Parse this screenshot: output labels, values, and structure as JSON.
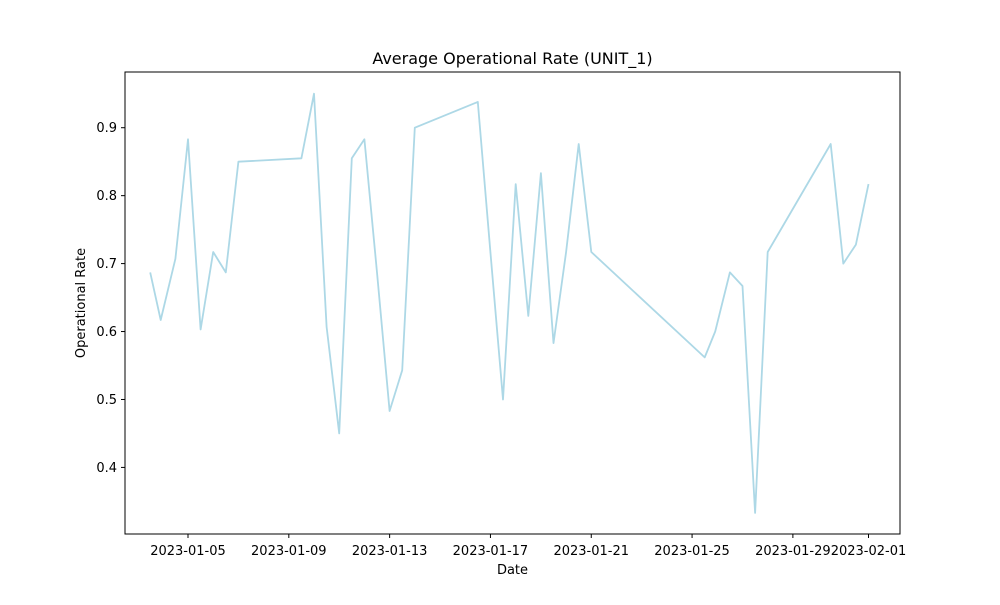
{
  "chart_data": {
    "type": "line",
    "title": "Average Operational Rate (UNIT_1)",
    "xlabel": "Date",
    "ylabel": "Operational Rate",
    "x_ticks": [
      "2023-01-05",
      "2023-01-09",
      "2023-01-13",
      "2023-01-17",
      "2023-01-21",
      "2023-01-25",
      "2023-01-29",
      "2023-02-01"
    ],
    "y_ticks": [
      "0.4",
      "0.5",
      "0.6",
      "0.7",
      "0.8",
      "0.9"
    ],
    "xlim": [
      "2023-01-02 12:00",
      "2023-02-02 06:00"
    ],
    "ylim": [
      0.302,
      0.982
    ],
    "grid": false,
    "legend": "none",
    "series": [
      {
        "color": "#add8e6",
        "x": [
          "2023-01-03 12:00",
          "2023-01-03 22:00",
          "2023-01-04 12:00",
          "2023-01-05 00:00",
          "2023-01-05 12:00",
          "2023-01-06 00:00",
          "2023-01-06 12:00",
          "2023-01-07 00:00",
          "2023-01-09 12:00",
          "2023-01-10 00:00",
          "2023-01-10 12:00",
          "2023-01-11 00:00",
          "2023-01-11 12:00",
          "2023-01-12 00:00",
          "2023-01-12 12:00",
          "2023-01-13 00:00",
          "2023-01-13 12:00",
          "2023-01-14 00:00",
          "2023-01-16 12:00",
          "2023-01-17 00:00",
          "2023-01-17 12:00",
          "2023-01-18 00:00",
          "2023-01-18 12:00",
          "2023-01-19 00:00",
          "2023-01-19 12:00",
          "2023-01-20 00:00",
          "2023-01-20 12:00",
          "2023-01-21 00:00",
          "2023-01-25 12:00",
          "2023-01-25 22:00",
          "2023-01-26 12:00",
          "2023-01-27 00:00",
          "2023-01-27 12:00",
          "2023-01-28 00:00",
          "2023-01-30 12:00",
          "2023-01-31 00:00",
          "2023-01-31 12:00",
          "2023-02-01 00:00"
        ],
        "values": [
          0.687,
          0.617,
          0.707,
          0.883,
          0.603,
          0.717,
          0.687,
          0.85,
          0.855,
          0.95,
          0.607,
          0.45,
          0.855,
          0.883,
          0.687,
          0.483,
          0.543,
          0.9,
          0.938,
          0.717,
          0.5,
          0.817,
          0.623,
          0.833,
          0.583,
          0.717,
          0.876,
          0.717,
          0.562,
          0.6,
          0.687,
          0.667,
          0.333,
          0.717,
          0.876,
          0.7,
          0.728,
          0.817
        ]
      }
    ]
  }
}
